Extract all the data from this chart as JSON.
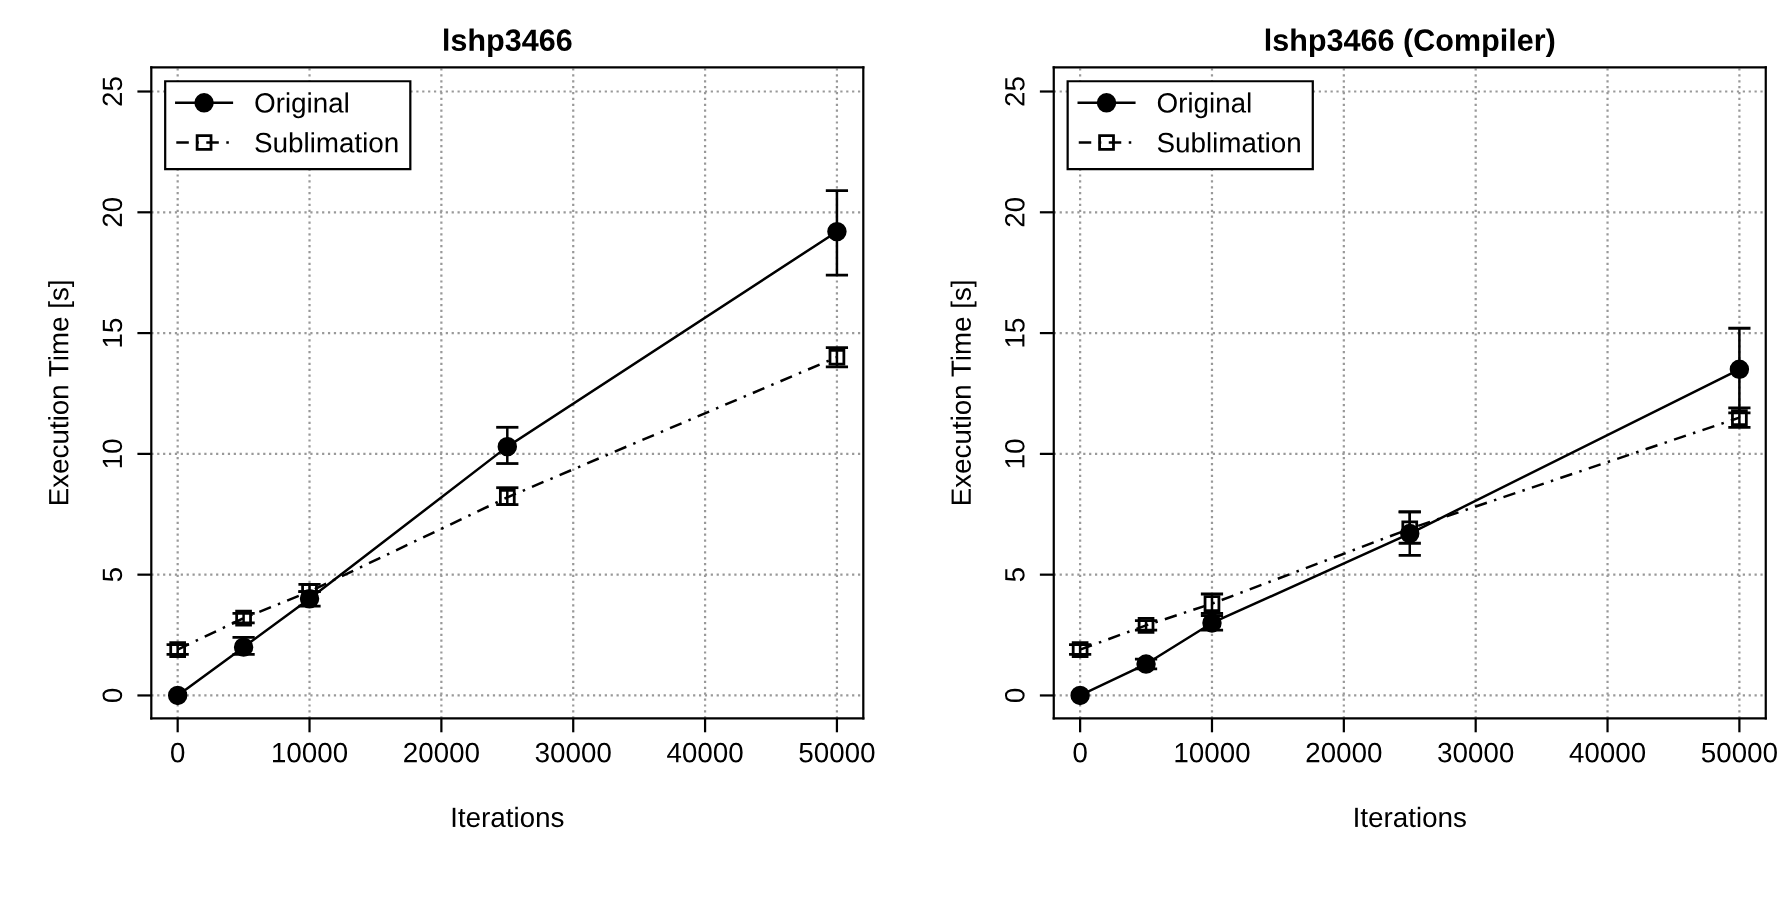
{
  "chart_data": [
    {
      "type": "line",
      "title": "lshp3466",
      "xlabel": "Iterations",
      "ylabel": "Execution Time [s]",
      "x": [
        0,
        5000,
        10000,
        25000,
        50000
      ],
      "xlim": [
        -2000,
        52000
      ],
      "xticks": [
        0,
        10000,
        20000,
        30000,
        40000,
        50000
      ],
      "ylim": [
        -0.95,
        26
      ],
      "yticks": [
        0,
        5,
        10,
        15,
        20,
        25
      ],
      "grid": true,
      "legend": "top left",
      "series": [
        {
          "name": "Original",
          "color": "#000000",
          "marker": "circle",
          "line_style": "solid",
          "values": [
            0,
            2.0,
            4.0,
            10.3,
            19.2
          ],
          "errors": [
            null,
            [
              1.7,
              2.4
            ],
            [
              3.7,
              4.3
            ],
            [
              9.6,
              11.1
            ],
            [
              17.4,
              20.9
            ]
          ]
        },
        {
          "name": "Sublimation",
          "color": "#000000",
          "marker": "square",
          "line_style": "dashed",
          "values": [
            1.9,
            3.2,
            4.3,
            8.2,
            14.0
          ],
          "errors": [
            [
              1.7,
              2.1
            ],
            [
              3.0,
              3.4
            ],
            [
              4.3,
              4.6
            ],
            [
              7.9,
              8.6
            ],
            [
              13.6,
              14.4
            ]
          ]
        }
      ]
    },
    {
      "type": "line",
      "title": "lshp3466 (Compiler)",
      "xlabel": "Iterations",
      "ylabel": "Execution Time [s]",
      "x": [
        0,
        5000,
        10000,
        25000,
        50000
      ],
      "xlim": [
        -2000,
        52000
      ],
      "xticks": [
        0,
        10000,
        20000,
        30000,
        40000,
        50000
      ],
      "ylim": [
        -0.95,
        26
      ],
      "yticks": [
        0,
        5,
        10,
        15,
        20,
        25
      ],
      "grid": true,
      "legend": "top left",
      "series": [
        {
          "name": "Original",
          "color": "#000000",
          "marker": "circle",
          "line_style": "solid",
          "values": [
            0,
            1.3,
            3.0,
            6.7,
            13.5
          ],
          "errors": [
            null,
            [
              1.1,
              1.5
            ],
            [
              2.7,
              3.3
            ],
            [
              5.8,
              7.6
            ],
            [
              11.7,
              15.2
            ]
          ]
        },
        {
          "name": "Sublimation",
          "color": "#000000",
          "marker": "square",
          "line_style": "dashed",
          "values": [
            1.9,
            2.9,
            3.8,
            6.9,
            11.5
          ],
          "errors": [
            [
              1.7,
              2.1
            ],
            [
              2.7,
              3.1
            ],
            [
              3.4,
              4.2
            ],
            [
              6.3,
              7.6
            ],
            [
              11.1,
              11.9
            ]
          ]
        }
      ]
    }
  ]
}
